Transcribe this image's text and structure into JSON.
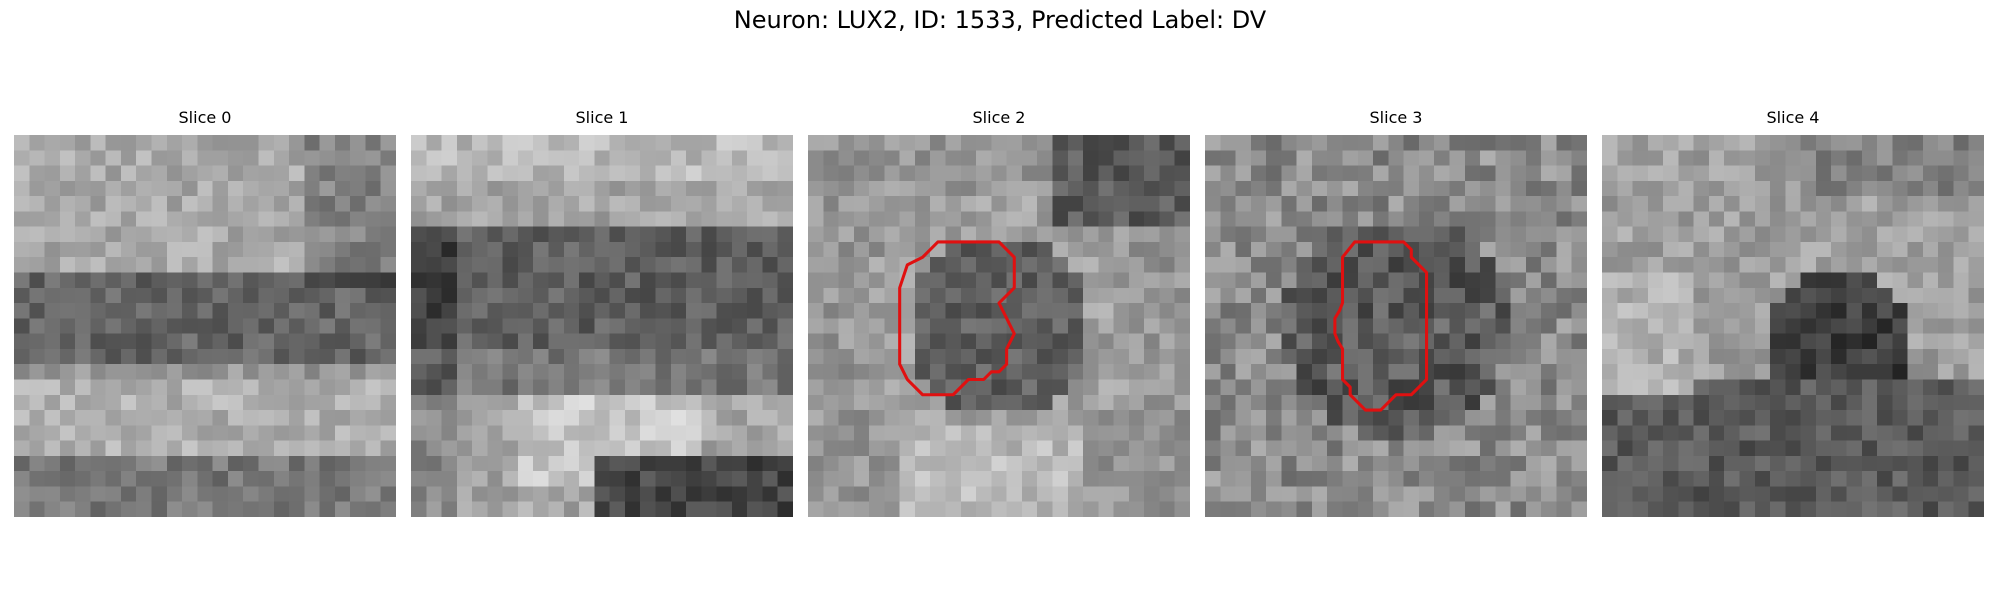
{
  "figure": {
    "title": "Neuron: LUX2, ID: 1533, Predicted Label: DV",
    "grid_size": 25,
    "contour_color": "#e01010"
  },
  "slices": [
    {
      "title": "Slice 0",
      "has_contour": false,
      "pattern": "bands"
    },
    {
      "title": "Slice 1",
      "has_contour": false,
      "pattern": "bands-strong"
    },
    {
      "title": "Slice 2",
      "has_contour": true,
      "pattern": "ring"
    },
    {
      "title": "Slice 3",
      "has_contour": true,
      "pattern": "noisy-dark-center"
    },
    {
      "title": "Slice 4",
      "has_contour": false,
      "pattern": "blob"
    }
  ]
}
